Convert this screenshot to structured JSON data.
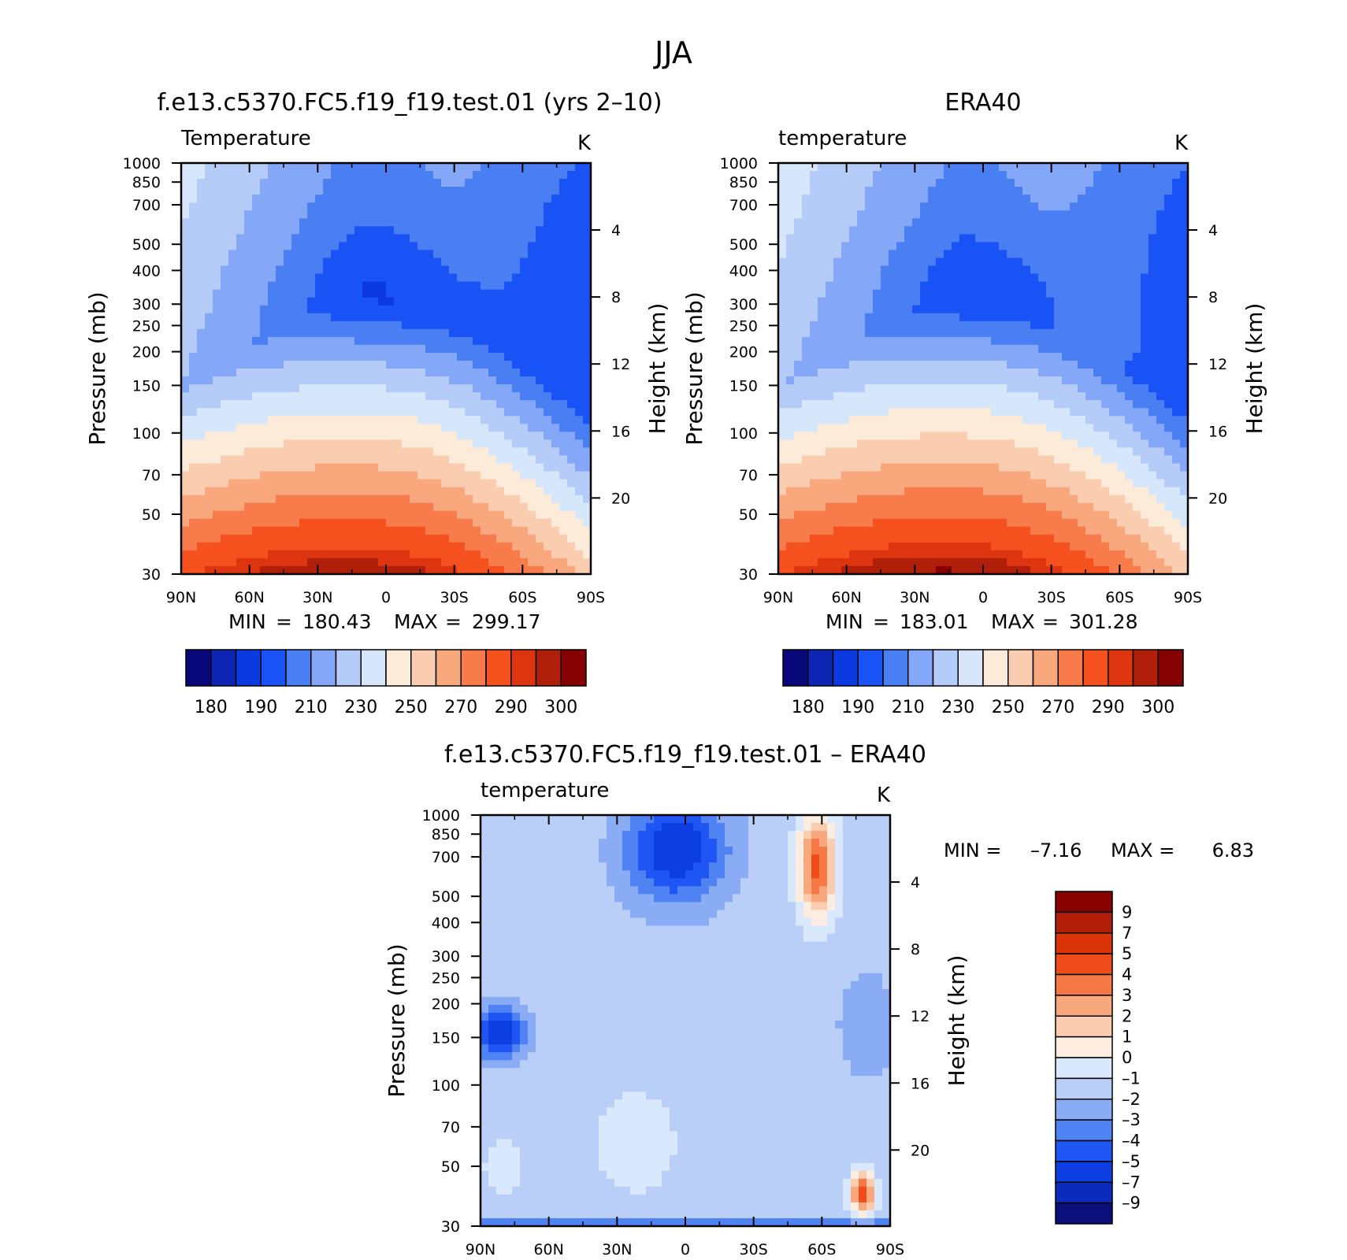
{
  "figure_title": "JJA",
  "colors": {
    "abs_palette": [
      "#08087a",
      "#0d25b3",
      "#0a3ae0",
      "#1952f5",
      "#4a7ff4",
      "#84a7f7",
      "#b6ccf8",
      "#d6e6fb",
      "#fdebd9",
      "#fbcdb0",
      "#f9a77c",
      "#f77b4b",
      "#f5511e",
      "#dc3510",
      "#b01f0a",
      "#860202"
    ],
    "diff_palette": [
      "#0a0f7c",
      "#0b2bbc",
      "#0d3ee2",
      "#1f56f3",
      "#4f82f3",
      "#8aacf5",
      "#b9cff8",
      "#d9e8fc",
      "#fdece0",
      "#fbcdb0",
      "#f9a77d",
      "#f67844",
      "#ef4c1b",
      "#db3408",
      "#b31e08",
      "#870101"
    ]
  },
  "chart_data": [
    {
      "type": "heatmap",
      "id": "model",
      "title": "f.e13.c5370.FC5.f19_f19.test.01 (yrs 2–10)",
      "left_string": "Temperature",
      "units": "K",
      "ylabel": "Pressure (mb)",
      "y2label": "Height (km)",
      "xticks": [
        "90N",
        "60N",
        "30N",
        "0",
        "30S",
        "60S",
        "90S"
      ],
      "yticks": [
        "30",
        "50",
        "70",
        "100",
        "150",
        "200",
        "250",
        "300",
        "400",
        "500",
        "700",
        "850",
        "1000"
      ],
      "y2ticks": [
        "20",
        "16",
        "12",
        "8",
        "4"
      ],
      "xlim": [
        90,
        -90
      ],
      "ylim": [
        1000,
        30
      ],
      "stats": {
        "min_label": "MIN",
        "min": "180.43",
        "max_label": "MAX",
        "max": "299.17"
      },
      "colorbar_labels": [
        "180",
        "190",
        "210",
        "230",
        "250",
        "270",
        "290",
        "300"
      ],
      "levels": [
        180,
        185,
        190,
        200,
        210,
        220,
        230,
        240,
        250,
        260,
        270,
        280,
        290,
        295,
        300
      ]
    },
    {
      "type": "heatmap",
      "id": "obs",
      "title": "ERA40",
      "left_string": "temperature",
      "units": "K",
      "ylabel": "Pressure (mb)",
      "y2label": "Height (km)",
      "xticks": [
        "90N",
        "60N",
        "30N",
        "0",
        "30S",
        "60S",
        "90S"
      ],
      "yticks": [
        "30",
        "50",
        "70",
        "100",
        "150",
        "200",
        "250",
        "300",
        "400",
        "500",
        "700",
        "850",
        "1000"
      ],
      "y2ticks": [
        "20",
        "16",
        "12",
        "8",
        "4"
      ],
      "xlim": [
        90,
        -90
      ],
      "ylim": [
        1000,
        30
      ],
      "stats": {
        "min_label": "MIN",
        "min": "183.01",
        "max_label": "MAX",
        "max": "301.28"
      },
      "colorbar_labels": [
        "180",
        "190",
        "210",
        "230",
        "250",
        "270",
        "290",
        "300"
      ],
      "levels": [
        180,
        185,
        190,
        200,
        210,
        220,
        230,
        240,
        250,
        260,
        270,
        280,
        290,
        295,
        300
      ]
    },
    {
      "type": "heatmap",
      "id": "diff",
      "title": "f.e13.c5370.FC5.f19_f19.test.01 – ERA40",
      "left_string": "temperature",
      "units": "K",
      "ylabel": "Pressure (mb)",
      "y2label": "Height (km)",
      "xticks": [
        "90N",
        "60N",
        "30N",
        "0",
        "30S",
        "60S",
        "90S"
      ],
      "yticks": [
        "30",
        "50",
        "70",
        "100",
        "150",
        "200",
        "250",
        "300",
        "400",
        "500",
        "700",
        "850",
        "1000"
      ],
      "y2ticks": [
        "20",
        "16",
        "12",
        "8",
        "4"
      ],
      "xlim": [
        90,
        -90
      ],
      "ylim": [
        1000,
        30
      ],
      "stats": {
        "min_label": "MIN =",
        "min": "–7.16",
        "max_label": "MAX =",
        "max": "6.83"
      },
      "colorbar_labels": [
        "9",
        "7",
        "5",
        "4",
        "3",
        "2",
        "1",
        "0",
        "–1",
        "–2",
        "–3",
        "–4",
        "–5",
        "–7",
        "–9"
      ],
      "levels": [
        -9,
        -7,
        -5,
        -4,
        -3,
        -2,
        -1,
        0,
        1,
        2,
        3,
        4,
        5,
        7,
        9
      ]
    }
  ]
}
